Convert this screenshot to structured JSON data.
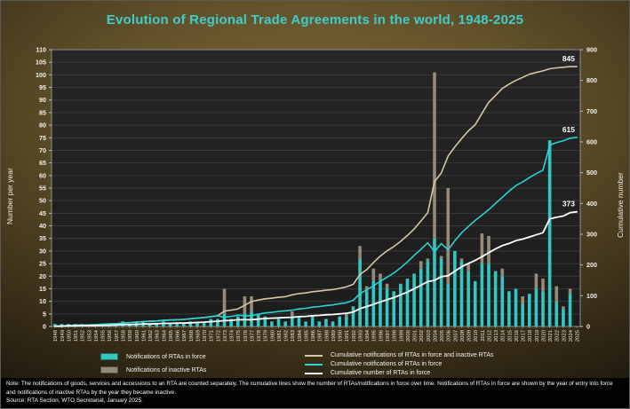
{
  "window": {
    "title": "Evolution of Regional Trade Agreements in the world, 1948-2025"
  },
  "chart_data": {
    "type": "bar",
    "subtype": "stacked-bars-with-cumulative-lines",
    "title": "Evolution of Regional Trade Agreements in the world, 1948-2025",
    "year_start": 1948,
    "year_end": 2025,
    "axes": {
      "left": {
        "label": "Number per year",
        "min": 0,
        "max": 110,
        "step": 5
      },
      "right": {
        "label": "Cumulative number",
        "min": 0,
        "max": 900,
        "step": 100
      }
    },
    "grid": "horizontal",
    "legend_position": "bottom",
    "colors": {
      "bar_in_force": "#35c7bf",
      "bar_inactive": "#968b78",
      "line_all_notifications": "#d6c6a4",
      "line_in_force_notifications": "#27d3d3",
      "line_rtas_in_force": "#ffffff",
      "plot_bg_top": "#262626",
      "plot_bg_bottom": "#1c1c1c",
      "gridline": "#3a3a3a",
      "axis_text": "#f2f2f2",
      "title": "#41cccc"
    },
    "bar_series": [
      {
        "name": "Notifications of RTAs in force",
        "color": "#35c7bf",
        "values": [
          1,
          1,
          1,
          1,
          1,
          0,
          1,
          1,
          1,
          1,
          2,
          1,
          2,
          2,
          1,
          1,
          2,
          1,
          1,
          1,
          2,
          2,
          2,
          3,
          3,
          5,
          3,
          4,
          5,
          6,
          5,
          4,
          2,
          3,
          2,
          4,
          4,
          2,
          4,
          2,
          3,
          2,
          4,
          4,
          8,
          27,
          14,
          18,
          18,
          15,
          14,
          17,
          19,
          21,
          23,
          26,
          35,
          27,
          17,
          30,
          26,
          22,
          18,
          25,
          25,
          22,
          20,
          14,
          15,
          9,
          13,
          15,
          14,
          74,
          10,
          7,
          13,
          0
        ]
      },
      {
        "name": "Notifications of inactive RTAs",
        "color": "#968b78",
        "values": [
          0,
          0,
          0,
          0,
          0,
          0,
          0,
          0,
          0,
          0,
          0,
          0,
          0,
          0,
          0,
          0,
          0,
          0,
          0,
          0,
          0,
          0,
          0,
          0,
          0,
          10,
          0,
          0,
          7,
          6,
          0,
          0,
          0,
          0,
          0,
          2,
          0,
          0,
          0,
          0,
          0,
          0,
          0,
          1,
          0,
          5,
          2,
          5,
          3,
          2,
          0,
          0,
          0,
          0,
          3,
          1,
          66,
          1,
          38,
          0,
          1,
          3,
          0,
          12,
          11,
          0,
          3,
          0,
          0,
          3,
          0,
          6,
          5,
          0,
          6,
          1,
          2,
          0
        ]
      }
    ],
    "line_series": [
      {
        "name": "Cumulative notifications of RTAs in force and inactive RTAs",
        "color": "#d6c6a4",
        "axis": "right",
        "width": 1.6,
        "values": [
          1,
          2,
          3,
          4,
          5,
          5,
          6,
          7,
          8,
          9,
          11,
          12,
          14,
          16,
          17,
          18,
          20,
          21,
          22,
          23,
          25,
          27,
          29,
          32,
          35,
          50,
          53,
          57,
          69,
          81,
          86,
          90,
          92,
          95,
          97,
          103,
          107,
          109,
          113,
          115,
          118,
          120,
          124,
          129,
          137,
          169,
          185,
          208,
          229,
          246,
          260,
          277,
          296,
          317,
          343,
          370,
          471,
          499,
          554,
          584,
          611,
          636,
          656,
          693,
          729,
          751,
          774,
          788,
          800,
          810,
          820,
          826,
          831,
          838,
          841,
          843,
          845,
          845
        ]
      },
      {
        "name": "Cumulative notifications of RTAs in force",
        "color": "#27d3d3",
        "axis": "right",
        "width": 1.6,
        "values": [
          1,
          2,
          3,
          4,
          5,
          5,
          6,
          7,
          8,
          9,
          11,
          12,
          14,
          16,
          17,
          18,
          20,
          21,
          22,
          23,
          25,
          27,
          29,
          32,
          35,
          30,
          33,
          37,
          35,
          35,
          40,
          44,
          46,
          49,
          51,
          53,
          57,
          59,
          63,
          65,
          68,
          70,
          74,
          77,
          85,
          107,
          119,
          132,
          147,
          160,
          174,
          191,
          210,
          231,
          251,
          272,
          243,
          270,
          249,
          279,
          305,
          325,
          345,
          362,
          380,
          400,
          420,
          440,
          458,
          470,
          484,
          497,
          508,
          590,
          598,
          604,
          612,
          615
        ]
      },
      {
        "name": "Cumulative number of RTAs in force",
        "color": "#ffffff",
        "axis": "right",
        "width": 1.8,
        "values": [
          1,
          1,
          2,
          2,
          3,
          3,
          3,
          4,
          4,
          5,
          6,
          6,
          7,
          8,
          8,
          9,
          10,
          10,
          11,
          11,
          12,
          13,
          14,
          16,
          17,
          19,
          20,
          22,
          22,
          22,
          24,
          26,
          27,
          28,
          29,
          30,
          32,
          33,
          35,
          36,
          38,
          39,
          41,
          43,
          47,
          58,
          65,
          72,
          80,
          87,
          94,
          103,
          112,
          123,
          134,
          146,
          150,
          162,
          165,
          180,
          194,
          205,
          215,
          227,
          240,
          252,
          263,
          270,
          279,
          284,
          291,
          298,
          305,
          350,
          355,
          359,
          370,
          373
        ]
      }
    ],
    "end_labels": [
      {
        "text": "845",
        "value": 845
      },
      {
        "text": "615",
        "value": 615
      },
      {
        "text": "373",
        "value": 373
      }
    ]
  },
  "legend": {
    "bars": [
      {
        "label": "Notifications of RTAs in force"
      },
      {
        "label": "Notifications of inactive RTAs"
      }
    ],
    "lines": [
      {
        "label": "Cumulative notifications of RTAs in force and inactive RTAs"
      },
      {
        "label": "Cumulative notifications of RTAs in force"
      },
      {
        "label": "Cumulative number of RTAs in force"
      }
    ]
  },
  "notes": {
    "note": "Note: The notifications of goods, services and accessions to an RTA are counted separately. The cumulative lines show the number of RTAs/notifications in force over time. Notifications of RTAs in force are shown by the year of entry into force and notifications of inactive RTAs by the year they became inactive.",
    "source": "Source: RTA Section, WTO Secretariat, January 2025."
  }
}
